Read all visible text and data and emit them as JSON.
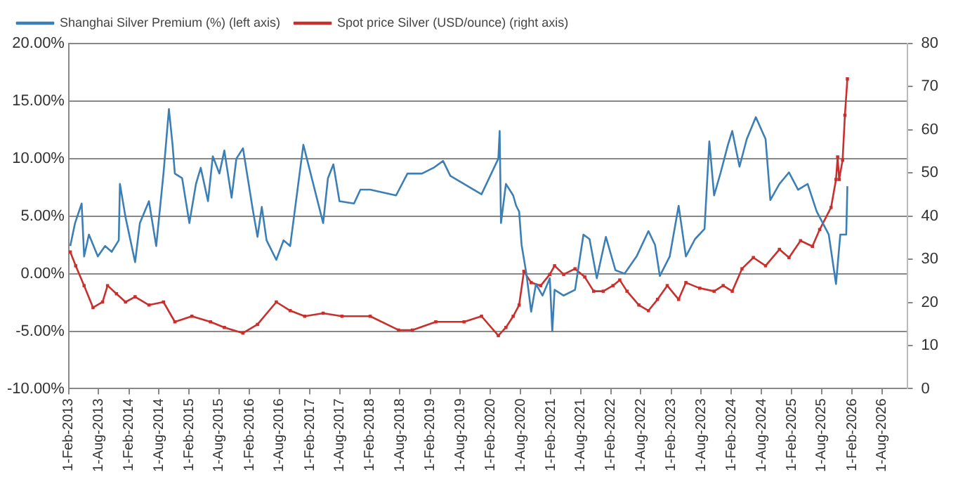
{
  "chart_data": {
    "type": "line",
    "xlim": [
      "2013-02-01",
      "2027-01-01"
    ],
    "xticks": [
      {
        "value": "2013-02-01",
        "label": "1-Feb-2013"
      },
      {
        "value": "2013-08-01",
        "label": "1-Aug-2013"
      },
      {
        "value": "2014-02-01",
        "label": "1-Feb-2014"
      },
      {
        "value": "2014-08-01",
        "label": "1-Aug-2014"
      },
      {
        "value": "2015-02-01",
        "label": "1-Feb-2015"
      },
      {
        "value": "2015-08-01",
        "label": "1-Aug-2015"
      },
      {
        "value": "2016-02-01",
        "label": "1-Feb-2016"
      },
      {
        "value": "2016-08-01",
        "label": "1-Aug-2016"
      },
      {
        "value": "2017-02-01",
        "label": "1-Feb-2017"
      },
      {
        "value": "2017-08-01",
        "label": "1-Aug-2017"
      },
      {
        "value": "2018-02-01",
        "label": "1-Feb-2018"
      },
      {
        "value": "2018-08-01",
        "label": "1-Aug-2018"
      },
      {
        "value": "2019-02-01",
        "label": "1-Feb-2019"
      },
      {
        "value": "2019-08-01",
        "label": "1-Aug-2019"
      },
      {
        "value": "2020-02-01",
        "label": "1-Feb-2020"
      },
      {
        "value": "2020-08-01",
        "label": "1-Aug-2020"
      },
      {
        "value": "2021-02-01",
        "label": "1-Feb-2021"
      },
      {
        "value": "2021-08-01",
        "label": "1-Aug-2021"
      },
      {
        "value": "2022-02-01",
        "label": "1-Feb-2022"
      },
      {
        "value": "2022-08-01",
        "label": "1-Aug-2022"
      },
      {
        "value": "2023-02-01",
        "label": "1-Feb-2023"
      },
      {
        "value": "2023-08-01",
        "label": "1-Aug-2023"
      },
      {
        "value": "2024-02-01",
        "label": "1-Feb-2024"
      },
      {
        "value": "2024-08-01",
        "label": "1-Aug-2024"
      },
      {
        "value": "2025-02-01",
        "label": "1-Feb-2025"
      },
      {
        "value": "2025-08-01",
        "label": "1-Aug-2025"
      },
      {
        "value": "2026-02-01",
        "label": "1-Feb-2026"
      },
      {
        "value": "2026-08-01",
        "label": "1-Aug-2026"
      }
    ],
    "ylim": [
      -10,
      20
    ],
    "yticks": [
      {
        "value": -10,
        "label": "-10.00%"
      },
      {
        "value": -5,
        "label": "-5.00%"
      },
      {
        "value": 0,
        "label": "0.00%"
      },
      {
        "value": 5,
        "label": "5.00%"
      },
      {
        "value": 10,
        "label": "10.00%"
      },
      {
        "value": 15,
        "label": "15.00%"
      },
      {
        "value": 20,
        "label": "20.00%"
      }
    ],
    "y2lim": [
      0,
      80
    ],
    "y2ticks": [
      0,
      10,
      20,
      30,
      40,
      50,
      60,
      70,
      80
    ],
    "grid": "y",
    "legend": "top",
    "line_style": "solid",
    "series": [
      {
        "name": "Shanghai Silver Premium (%) (left axis)",
        "color": "#3b7fb6",
        "marker": "none",
        "x": [
          "2013-02-10",
          "2013-03-11",
          "2013-04-20",
          "2013-05-05",
          "2013-06-03",
          "2013-07-27",
          "2013-09-09",
          "2013-10-19",
          "2013-12-01",
          "2013-12-08",
          "2014-01-11",
          "2014-03-10",
          "2014-04-08",
          "2014-06-02",
          "2014-07-16",
          "2014-08-29",
          "2014-10-01",
          "2014-10-23",
          "2014-11-06",
          "2014-12-20",
          "2015-02-02",
          "2015-03-14",
          "2015-04-12",
          "2015-05-26",
          "2015-06-24",
          "2015-08-03",
          "2015-09-02",
          "2015-10-16",
          "2015-11-14",
          "2015-12-24",
          "2016-02-21",
          "2016-03-21",
          "2016-04-16",
          "2016-05-15",
          "2016-07-13",
          "2016-08-26",
          "2016-10-05",
          "2016-12-24",
          "2017-04-23",
          "2017-05-22",
          "2017-06-24",
          "2017-07-31",
          "2017-10-27",
          "2017-12-05",
          "2018-02-02",
          "2018-07-09",
          "2018-09-16",
          "2018-12-13",
          "2019-02-21",
          "2019-04-20",
          "2019-06-03",
          "2019-10-23",
          "2019-12-09",
          "2020-03-20",
          "2020-03-28",
          "2020-04-05",
          "2020-05-05",
          "2020-06-18",
          "2020-07-06",
          "2020-07-24",
          "2020-08-08",
          "2020-09-06",
          "2020-10-05",
          "2020-11-03",
          "2020-12-13",
          "2021-01-26",
          "2021-02-10",
          "2021-02-24",
          "2021-04-20",
          "2021-06-28",
          "2021-08-18",
          "2021-09-24",
          "2021-11-07",
          "2021-12-06",
          "2022-01-01",
          "2022-02-28",
          "2022-04-24",
          "2022-07-06",
          "2022-09-16",
          "2022-10-26",
          "2022-11-24",
          "2023-01-23",
          "2023-03-18",
          "2023-05-01",
          "2023-06-25",
          "2023-08-22",
          "2023-09-20",
          "2023-10-19",
          "2023-11-28",
          "2024-01-11",
          "2024-02-06",
          "2024-03-21",
          "2024-05-04",
          "2024-06-28",
          "2024-08-26",
          "2024-09-24",
          "2024-11-18",
          "2025-01-15",
          "2025-03-11",
          "2025-05-08",
          "2025-07-02",
          "2025-09-13",
          "2025-10-27",
          "2025-11-22",
          "2025-12-28",
          "2026-01-04"
        ],
        "values": [
          2.4,
          4.4,
          6.1,
          1.5,
          3.4,
          1.5,
          2.4,
          1.9,
          2.9,
          7.8,
          4.9,
          1.0,
          4.4,
          6.3,
          2.4,
          8.7,
          14.3,
          11.2,
          8.7,
          8.3,
          4.4,
          7.8,
          9.2,
          6.3,
          10.2,
          8.7,
          10.7,
          6.6,
          10.0,
          10.9,
          5.6,
          3.2,
          5.8,
          2.9,
          1.2,
          2.9,
          2.4,
          11.2,
          4.4,
          8.3,
          9.5,
          6.3,
          6.1,
          7.3,
          7.3,
          6.8,
          8.7,
          8.7,
          9.2,
          9.8,
          8.5,
          7.3,
          6.9,
          10.0,
          12.4,
          4.4,
          7.8,
          6.8,
          5.9,
          5.4,
          2.5,
          0.0,
          -3.3,
          -0.9,
          -1.9,
          -0.4,
          -5.0,
          -1.4,
          -1.9,
          -1.4,
          3.4,
          3.0,
          -0.4,
          1.5,
          3.2,
          0.3,
          0.0,
          1.5,
          3.7,
          2.5,
          -0.2,
          1.5,
          5.9,
          1.5,
          3.0,
          3.9,
          11.5,
          6.8,
          8.8,
          11.2,
          12.4,
          9.3,
          11.7,
          13.6,
          11.7,
          6.4,
          7.8,
          8.8,
          7.3,
          7.8,
          5.4,
          3.4,
          -0.9,
          3.4,
          3.4,
          7.6
        ]
      },
      {
        "name": "Spot price Silver (USD/ounce) (right axis)",
        "color": "#c8302e",
        "marker": "square",
        "axis": "y2",
        "x": [
          "2013-02-10",
          "2013-03-15",
          "2013-05-05",
          "2013-06-28",
          "2013-08-25",
          "2013-09-24",
          "2013-11-17",
          "2014-01-11",
          "2014-03-10",
          "2014-06-02",
          "2014-08-29",
          "2014-11-06",
          "2015-02-17",
          "2015-06-10",
          "2015-09-02",
          "2015-12-24",
          "2016-03-21",
          "2016-07-13",
          "2016-10-05",
          "2017-01-01",
          "2017-04-23",
          "2017-08-15",
          "2018-02-02",
          "2018-07-24",
          "2018-10-16",
          "2019-03-07",
          "2019-08-25",
          "2019-12-09",
          "2020-03-20",
          "2020-05-05",
          "2020-06-18",
          "2020-07-24",
          "2020-08-22",
          "2020-10-05",
          "2020-12-02",
          "2021-01-26",
          "2021-02-24",
          "2021-04-20",
          "2021-06-28",
          "2021-08-26",
          "2021-10-19",
          "2021-12-16",
          "2022-02-13",
          "2022-03-26",
          "2022-05-09",
          "2022-07-20",
          "2022-09-16",
          "2022-11-10",
          "2023-01-08",
          "2023-03-18",
          "2023-05-01",
          "2023-07-24",
          "2023-10-19",
          "2023-12-13",
          "2024-02-06",
          "2024-04-05",
          "2024-06-13",
          "2024-08-26",
          "2024-11-18",
          "2025-01-15",
          "2025-03-26",
          "2025-06-06",
          "2025-07-20",
          "2025-09-27",
          "2025-10-27",
          "2025-11-06",
          "2025-11-15",
          "2025-12-06",
          "2025-12-20",
          "2026-01-04"
        ],
        "values": [
          31.7,
          28.5,
          23.9,
          18.8,
          20.1,
          23.9,
          22.0,
          20.1,
          21.3,
          19.4,
          20.1,
          15.5,
          16.8,
          15.5,
          14.2,
          12.9,
          14.9,
          20.1,
          18.1,
          16.8,
          17.5,
          16.8,
          16.8,
          13.6,
          13.6,
          15.5,
          15.5,
          16.8,
          12.3,
          14.2,
          16.8,
          19.4,
          27.2,
          24.6,
          23.9,
          26.5,
          28.5,
          26.5,
          27.8,
          25.9,
          22.6,
          22.6,
          23.9,
          25.2,
          22.6,
          19.4,
          18.1,
          20.7,
          23.9,
          20.7,
          24.6,
          23.3,
          22.6,
          23.9,
          22.6,
          27.8,
          30.4,
          28.5,
          32.3,
          30.4,
          34.3,
          33.0,
          36.9,
          42.0,
          48.5,
          53.7,
          48.5,
          53.0,
          63.4,
          71.8
        ]
      }
    ]
  }
}
